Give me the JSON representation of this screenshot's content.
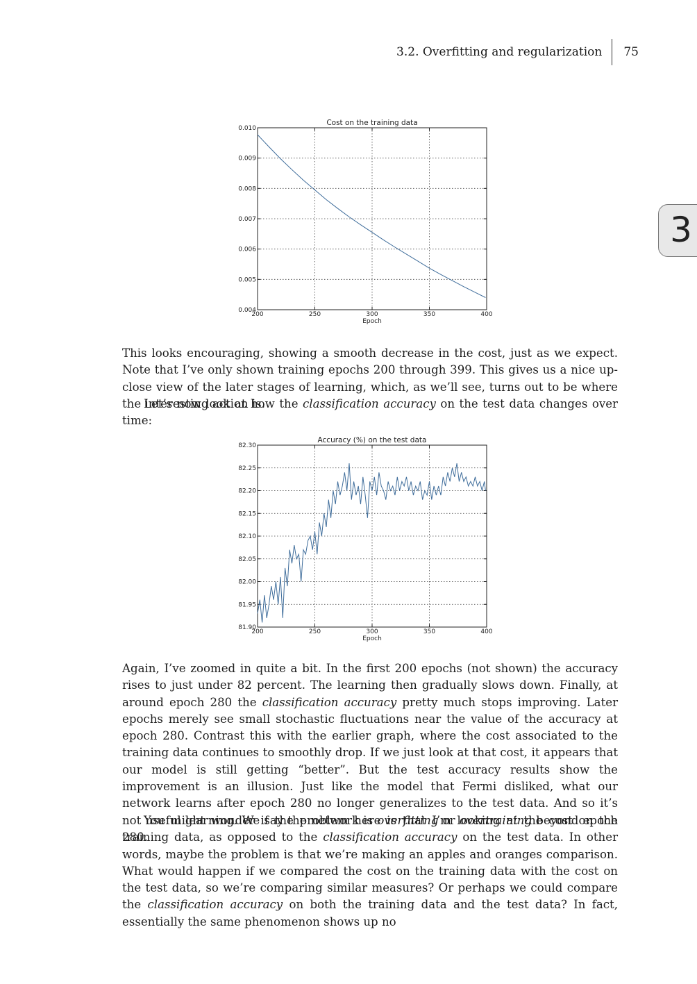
{
  "header": {
    "section_title": "3.2. Overfitting and regularization",
    "page_number": "75"
  },
  "chapter_tab": "3",
  "charts": [
    {
      "type": "line",
      "title": "Cost on the training data",
      "xlabel": "Epoch",
      "ylabel": "",
      "xlim": [
        200,
        400
      ],
      "ylim": [
        0.004,
        0.01
      ],
      "x_ticks": [
        "200",
        "250",
        "300",
        "350",
        "400"
      ],
      "y_ticks": [
        "0.004",
        "0.005",
        "0.006",
        "0.007",
        "0.008",
        "0.009",
        "0.010"
      ],
      "grid": true,
      "line_color": "#3f6d9b",
      "series": [
        {
          "x": [
            200,
            210,
            220,
            230,
            240,
            250,
            260,
            270,
            280,
            290,
            300,
            310,
            320,
            330,
            340,
            350,
            360,
            370,
            380,
            390,
            399
          ],
          "y": [
            0.00977,
            0.00937,
            0.00898,
            0.00862,
            0.00827,
            0.00795,
            0.00763,
            0.00734,
            0.00706,
            0.0068,
            0.00655,
            0.0063,
            0.00606,
            0.00583,
            0.0056,
            0.00537,
            0.00516,
            0.00496,
            0.00476,
            0.00457,
            0.0044
          ]
        }
      ]
    },
    {
      "type": "line",
      "title": "Accuracy (%) on the test data",
      "xlabel": "Epoch",
      "ylabel": "",
      "xlim": [
        200,
        400
      ],
      "ylim": [
        81.9,
        82.3
      ],
      "x_ticks": [
        "200",
        "250",
        "300",
        "350",
        "400"
      ],
      "y_ticks": [
        "81.90",
        "81.95",
        "82.00",
        "82.05",
        "82.10",
        "82.15",
        "82.20",
        "82.25",
        "82.30"
      ],
      "grid": true,
      "line_color": "#3f6d9b",
      "series": [
        {
          "x": [
            200,
            202,
            204,
            206,
            208,
            210,
            212,
            214,
            216,
            218,
            220,
            222,
            224,
            226,
            228,
            230,
            232,
            234,
            236,
            238,
            240,
            242,
            244,
            246,
            248,
            250,
            252,
            254,
            256,
            258,
            260,
            262,
            264,
            266,
            268,
            270,
            272,
            274,
            276,
            278,
            280,
            282,
            284,
            286,
            288,
            290,
            292,
            294,
            296,
            298,
            300,
            302,
            304,
            306,
            308,
            310,
            312,
            314,
            316,
            318,
            320,
            322,
            324,
            326,
            328,
            330,
            332,
            334,
            336,
            338,
            340,
            342,
            344,
            346,
            348,
            350,
            352,
            354,
            356,
            358,
            360,
            362,
            364,
            366,
            368,
            370,
            372,
            374,
            376,
            378,
            380,
            382,
            384,
            386,
            388,
            390,
            392,
            394,
            396,
            398,
            399
          ],
          "y": [
            81.93,
            81.96,
            81.91,
            81.97,
            81.92,
            81.95,
            81.99,
            81.96,
            82.0,
            81.95,
            82.01,
            81.92,
            82.03,
            81.99,
            82.07,
            82.04,
            82.08,
            82.05,
            82.06,
            82.0,
            82.07,
            82.06,
            82.09,
            82.1,
            82.07,
            82.11,
            82.06,
            82.13,
            82.1,
            82.15,
            82.12,
            82.18,
            82.14,
            82.2,
            82.17,
            82.22,
            82.19,
            82.21,
            82.24,
            82.2,
            82.26,
            82.18,
            82.22,
            82.19,
            82.21,
            82.17,
            82.23,
            82.19,
            82.14,
            82.22,
            82.2,
            82.23,
            82.19,
            82.24,
            82.21,
            82.2,
            82.18,
            82.22,
            82.2,
            82.21,
            82.19,
            82.23,
            82.2,
            82.22,
            82.21,
            82.23,
            82.2,
            82.22,
            82.19,
            82.21,
            82.2,
            82.22,
            82.18,
            82.2,
            82.19,
            82.22,
            82.18,
            82.21,
            82.19,
            82.21,
            82.19,
            82.23,
            82.21,
            82.24,
            82.22,
            82.25,
            82.23,
            82.26,
            82.22,
            82.24,
            82.22,
            82.23,
            82.21,
            82.22,
            82.21,
            82.23,
            82.21,
            82.22,
            82.2,
            82.22,
            82.2
          ]
        }
      ]
    }
  ],
  "paragraphs": [
    "This looks encouraging, showing a smooth decrease in the cost, just as we expect. Note that I’ve only shown training epochs 200 through 399. This gives us a nice up-close view of the later stages of learning, which, as we’ll see, turns out to be where the interesting action is.",
    "Let’s now look at how the classification accuracy on the test data changes over time:",
    "Again, I’ve zoomed in quite a bit. In the first 200 epochs (not shown) the accuracy rises to just under 82 percent. The learning then gradually slows down. Finally, at around epoch 280 the classification accuracy pretty much stops improving. Later epochs merely see small stochastic fluctuations near the value of the accuracy at epoch 280. Contrast this with the earlier graph, where the cost associated to the training data continues to smoothly drop. If we just look at that cost, it appears that our model is still getting “better”. But the test accuracy results show the improvement is an illusion. Just like the model that Fermi disliked, what our network learns after epoch 280 no longer generalizes to the test data. And so it’s not useful learning. We say the network is overfitting or overtraining beyond epoch 280.",
    "You might wonder if the problem here is that I’m looking at the cost on the training data, as opposed to the classification accuracy on the test data. In other words, maybe the problem is that we’re making an apples and oranges comparison. What would happen if we compared the cost on the training data with the cost on the test data, so we’re comparing similar measures? Or perhaps we could compare the classification accuracy on both the training data and the test data? In fact, essentially the same phenomenon shows up no"
  ],
  "emphasis": [
    "overfitting",
    "overtraining",
    "classification accuracy"
  ]
}
